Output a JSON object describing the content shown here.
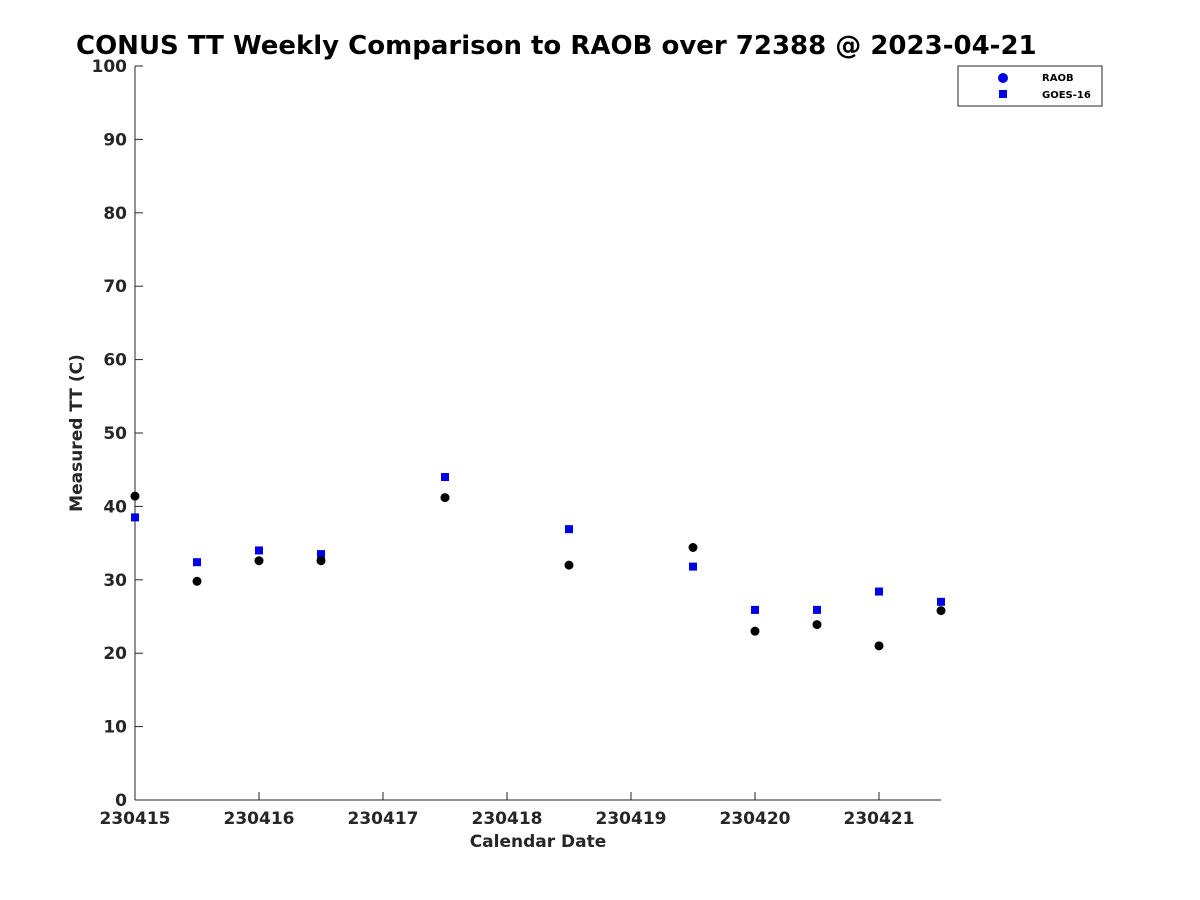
{
  "chart_data": {
    "type": "scatter",
    "title": "CONUS TT Weekly Comparison to RAOB over 72388 @ 2023-04-21",
    "xlabel": "Calendar Date",
    "ylabel": "Measured TT (C)",
    "xlim": [
      0,
      6.5
    ],
    "ylim": [
      0,
      100
    ],
    "x_ticks": [
      0,
      1,
      2,
      3,
      4,
      5,
      6
    ],
    "x_tick_labels": [
      "230415",
      "230416",
      "230417",
      "230418",
      "230419",
      "230420",
      "230421"
    ],
    "y_ticks": [
      0,
      10,
      20,
      30,
      40,
      50,
      60,
      70,
      80,
      90,
      100
    ],
    "y_tick_labels": [
      "0",
      "10",
      "20",
      "30",
      "40",
      "50",
      "60",
      "70",
      "80",
      "90",
      "100"
    ],
    "grid": false,
    "legend_position": "top-right",
    "series": [
      {
        "name": "RAOB",
        "marker": "circle",
        "color": "#000000",
        "legend_color": "#0000e6",
        "x": [
          0,
          0.5,
          1,
          1.5,
          2.5,
          3.5,
          4.5,
          5,
          5.5,
          6,
          6.5
        ],
        "values": [
          41.4,
          29.8,
          32.6,
          32.6,
          41.2,
          32.0,
          34.4,
          23.0,
          23.9,
          21.0,
          25.8
        ]
      },
      {
        "name": "GOES-16",
        "marker": "square",
        "color": "#0000e6",
        "x": [
          0,
          0.5,
          1,
          1.5,
          2.5,
          3.5,
          4.5,
          5,
          5.5,
          6,
          6.5
        ],
        "values": [
          38.5,
          32.4,
          34.0,
          33.5,
          44.0,
          36.9,
          31.8,
          25.9,
          25.9,
          28.4,
          27.0
        ]
      }
    ]
  }
}
